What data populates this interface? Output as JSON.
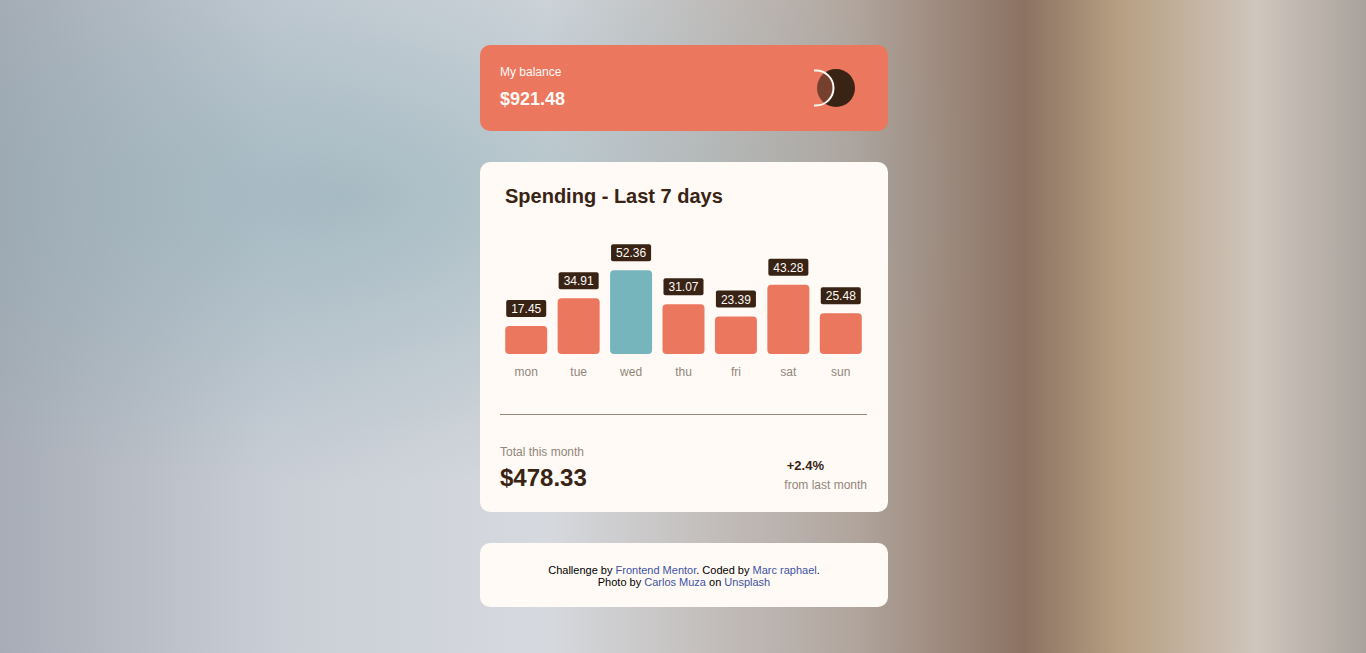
{
  "balance": {
    "label": "My balance",
    "amount": "$921.48"
  },
  "chart_data": {
    "type": "bar",
    "title": "Spending - Last 7 days",
    "categories": [
      "mon",
      "tue",
      "wed",
      "thu",
      "fri",
      "sat",
      "sun"
    ],
    "values": [
      17.45,
      34.91,
      52.36,
      31.07,
      23.39,
      43.28,
      25.48
    ],
    "colors": [
      "#ec775f",
      "#ec775f",
      "#76b5bc",
      "#ec775f",
      "#ec775f",
      "#ec775f",
      "#ec775f"
    ],
    "data_labels": true,
    "tick_labels": "x",
    "grid": false
  },
  "summary": {
    "label": "Total this month",
    "total": "$478.33",
    "change": "+2.4%",
    "change_label": "from last month"
  },
  "footer": {
    "lines": [
      [
        {
          "text": "Challenge by ",
          "link": false
        },
        {
          "text": "Frontend Mentor",
          "link": true
        },
        {
          "text": ". Coded by ",
          "link": false
        },
        {
          "text": "Marc raphael",
          "link": true
        },
        {
          "text": ".",
          "link": false
        }
      ],
      [
        {
          "text": "Photo by ",
          "link": false
        },
        {
          "text": "Carlos Muza",
          "link": true
        },
        {
          "text": " on ",
          "link": false
        },
        {
          "text": "Unsplash",
          "link": true
        }
      ]
    ]
  }
}
